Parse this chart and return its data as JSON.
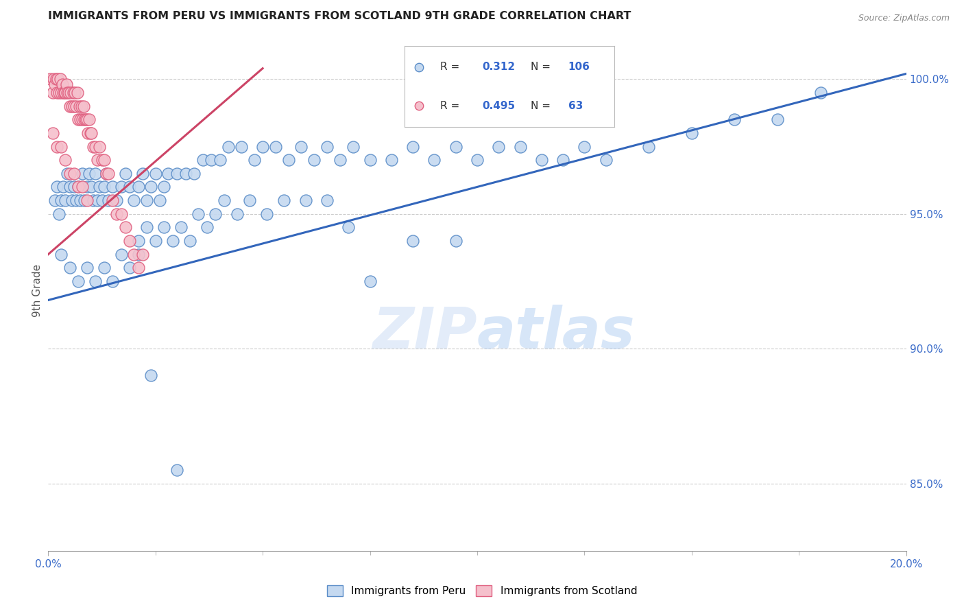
{
  "title": "IMMIGRANTS FROM PERU VS IMMIGRANTS FROM SCOTLAND 9TH GRADE CORRELATION CHART",
  "source": "Source: ZipAtlas.com",
  "ylabel": "9th Grade",
  "r_peru": 0.312,
  "n_peru": 106,
  "r_scotland": 0.495,
  "n_scotland": 63,
  "x_min": 0.0,
  "x_max": 20.0,
  "y_min": 82.5,
  "y_max": 101.8,
  "color_peru_fill": "#c5d9f0",
  "color_peru_edge": "#5b8dc8",
  "color_scotland_fill": "#f5c0cc",
  "color_scotland_edge": "#e06080",
  "color_peru_line": "#3366bb",
  "color_scotland_line": "#cc4466",
  "right_yticks": [
    85.0,
    90.0,
    95.0,
    100.0
  ],
  "watermark_zip": "ZIP",
  "watermark_atlas": "atlas",
  "blue_text_color": "#3366cc",
  "legend_peru_label": "Immigrants from Peru",
  "legend_scotland_label": "Immigrants from Scotland",
  "peru_trend_x0": 0.0,
  "peru_trend_y0": 91.8,
  "peru_trend_x1": 20.0,
  "peru_trend_y1": 100.2,
  "scotland_trend_x0": 0.0,
  "scotland_trend_y0": 93.5,
  "scotland_trend_x1": 5.0,
  "scotland_trend_y1": 100.4,
  "peru_scatter_x": [
    0.15,
    0.2,
    0.25,
    0.3,
    0.35,
    0.4,
    0.45,
    0.5,
    0.55,
    0.6,
    0.65,
    0.7,
    0.75,
    0.8,
    0.85,
    0.9,
    0.95,
    1.0,
    1.05,
    1.1,
    1.15,
    1.2,
    1.25,
    1.3,
    1.35,
    1.4,
    1.5,
    1.6,
    1.7,
    1.8,
    1.9,
    2.0,
    2.1,
    2.2,
    2.3,
    2.4,
    2.5,
    2.6,
    2.7,
    2.8,
    3.0,
    3.2,
    3.4,
    3.6,
    3.8,
    4.0,
    4.2,
    4.5,
    4.8,
    5.0,
    5.3,
    5.6,
    5.9,
    6.2,
    6.5,
    6.8,
    7.1,
    7.5,
    8.0,
    8.5,
    9.0,
    9.5,
    10.0,
    10.5,
    11.0,
    11.5,
    12.0,
    12.5,
    13.0,
    14.0,
    15.0,
    16.0,
    17.0,
    18.0,
    0.3,
    0.5,
    0.7,
    0.9,
    1.1,
    1.3,
    1.5,
    1.7,
    1.9,
    2.1,
    2.3,
    2.5,
    2.7,
    2.9,
    3.1,
    3.3,
    3.5,
    3.7,
    3.9,
    4.1,
    4.4,
    4.7,
    5.1,
    5.5,
    6.0,
    6.5,
    7.0,
    7.5,
    8.5,
    9.5,
    3.0,
    2.4,
    2.1
  ],
  "peru_scatter_y": [
    95.5,
    96.0,
    95.0,
    95.5,
    96.0,
    95.5,
    96.5,
    96.0,
    95.5,
    96.0,
    95.5,
    96.0,
    95.5,
    96.5,
    95.5,
    96.0,
    96.5,
    96.0,
    95.5,
    96.5,
    95.5,
    96.0,
    95.5,
    96.0,
    96.5,
    95.5,
    96.0,
    95.5,
    96.0,
    96.5,
    96.0,
    95.5,
    96.0,
    96.5,
    95.5,
    96.0,
    96.5,
    95.5,
    96.0,
    96.5,
    96.5,
    96.5,
    96.5,
    97.0,
    97.0,
    97.0,
    97.5,
    97.5,
    97.0,
    97.5,
    97.5,
    97.0,
    97.5,
    97.0,
    97.5,
    97.0,
    97.5,
    97.0,
    97.0,
    97.5,
    97.0,
    97.5,
    97.0,
    97.5,
    97.5,
    97.0,
    97.0,
    97.5,
    97.0,
    97.5,
    98.0,
    98.5,
    98.5,
    99.5,
    93.5,
    93.0,
    92.5,
    93.0,
    92.5,
    93.0,
    92.5,
    93.5,
    93.0,
    94.0,
    94.5,
    94.0,
    94.5,
    94.0,
    94.5,
    94.0,
    95.0,
    94.5,
    95.0,
    95.5,
    95.0,
    95.5,
    95.0,
    95.5,
    95.5,
    95.5,
    94.5,
    92.5,
    94.0,
    94.0,
    85.5,
    89.0,
    93.5
  ],
  "scotland_scatter_x": [
    0.05,
    0.1,
    0.12,
    0.15,
    0.18,
    0.2,
    0.22,
    0.25,
    0.28,
    0.3,
    0.33,
    0.35,
    0.38,
    0.4,
    0.42,
    0.45,
    0.48,
    0.5,
    0.52,
    0.55,
    0.58,
    0.6,
    0.62,
    0.65,
    0.68,
    0.7,
    0.73,
    0.75,
    0.78,
    0.8,
    0.83,
    0.85,
    0.88,
    0.9,
    0.93,
    0.95,
    0.98,
    1.0,
    1.05,
    1.1,
    1.15,
    1.2,
    1.25,
    1.3,
    1.35,
    1.4,
    1.5,
    1.6,
    1.7,
    1.8,
    1.9,
    2.0,
    2.1,
    2.2,
    0.1,
    0.2,
    0.3,
    0.4,
    0.5,
    0.6,
    0.7,
    0.8,
    0.9
  ],
  "scotland_scatter_y": [
    100.0,
    99.5,
    100.0,
    99.8,
    100.0,
    99.5,
    100.0,
    99.5,
    100.0,
    99.5,
    99.8,
    99.5,
    99.5,
    99.5,
    99.8,
    99.5,
    99.5,
    99.0,
    99.5,
    99.0,
    99.5,
    99.0,
    99.5,
    99.0,
    99.5,
    98.5,
    99.0,
    98.5,
    99.0,
    98.5,
    99.0,
    98.5,
    98.5,
    98.5,
    98.0,
    98.5,
    98.0,
    98.0,
    97.5,
    97.5,
    97.0,
    97.5,
    97.0,
    97.0,
    96.5,
    96.5,
    95.5,
    95.0,
    95.0,
    94.5,
    94.0,
    93.5,
    93.0,
    93.5,
    98.0,
    97.5,
    97.5,
    97.0,
    96.5,
    96.5,
    96.0,
    96.0,
    95.5
  ]
}
